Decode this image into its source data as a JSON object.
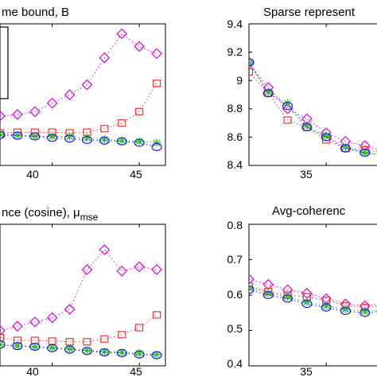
{
  "colors": {
    "magenta": "#e000e0",
    "red": "#ee3333",
    "green": "#22cc22",
    "blue": "#1a1aee",
    "black": "#000000"
  },
  "chart_data": [
    {
      "type": "line",
      "title": "me bound, B",
      "xticks": [
        "40",
        "45"
      ],
      "xlim": [
        37,
        46.5
      ],
      "ylim": [
        0,
        100
      ],
      "yticks": [],
      "legend": "boxed, partially visible at left edge",
      "x": [
        37,
        38,
        39,
        40,
        41,
        42,
        43,
        44,
        45,
        46
      ],
      "series": [
        {
          "marker": "diamond",
          "color": "magenta",
          "values": [
            35,
            36,
            38,
            44,
            50,
            57,
            76,
            93,
            84,
            79
          ]
        },
        {
          "marker": "square",
          "color": "red",
          "values": [
            23,
            23.5,
            23.5,
            23.5,
            23,
            23.5,
            26,
            30,
            38,
            58
          ]
        },
        {
          "marker": "star",
          "color": "green",
          "values": [
            22,
            21.5,
            20.5,
            20.5,
            20.5,
            19.5,
            18.5,
            17.5,
            17,
            16
          ]
        },
        {
          "marker": "circle",
          "color": "blue",
          "values": [
            21.5,
            21,
            20.5,
            19.5,
            19,
            18,
            17.5,
            17,
            16,
            13
          ]
        }
      ]
    },
    {
      "type": "line",
      "title": "Sparse represent",
      "xticks": [
        "35"
      ],
      "xlim": [
        31,
        38
      ],
      "ylim": [
        8.4,
        9.4
      ],
      "yticks": [
        "8.4",
        "8.6",
        "8.8",
        "9",
        "9.2",
        "9.4"
      ],
      "x": [
        31,
        32,
        33,
        34,
        35,
        36,
        37,
        38
      ],
      "series": [
        {
          "marker": "diamond",
          "color": "magenta",
          "values": [
            9.12,
            8.95,
            8.8,
            8.73,
            8.63,
            8.57,
            8.54,
            8.5
          ]
        },
        {
          "marker": "square",
          "color": "red",
          "values": [
            9.06,
            8.91,
            8.72,
            8.67,
            8.58,
            8.52,
            8.51,
            8.49
          ]
        },
        {
          "marker": "star",
          "color": "green",
          "values": [
            9.12,
            8.92,
            8.84,
            8.68,
            8.61,
            8.53,
            8.49,
            8.48
          ]
        },
        {
          "marker": "circle",
          "color": "blue",
          "values": [
            9.13,
            8.91,
            8.82,
            8.67,
            8.6,
            8.52,
            8.49,
            8.47
          ]
        }
      ]
    },
    {
      "type": "line",
      "title": "nce (cosine), μ",
      "title_sub": "mse",
      "xticks": [
        "40",
        "45"
      ],
      "xlim": [
        37,
        46.5
      ],
      "ylim": [
        0,
        100
      ],
      "yticks": [],
      "x": [
        37,
        38,
        39,
        40,
        41,
        42,
        43,
        44,
        45,
        46
      ],
      "series": [
        {
          "marker": "diamond",
          "color": "magenta",
          "values": [
            25,
            28,
            31,
            34,
            40,
            68,
            82,
            67,
            70,
            68
          ]
        },
        {
          "marker": "square",
          "color": "red",
          "values": [
            20,
            18,
            18,
            17.5,
            17,
            17,
            19,
            22,
            27,
            36
          ]
        },
        {
          "marker": "star",
          "color": "green",
          "values": [
            15,
            14,
            13.5,
            13,
            12,
            11,
            10,
            9.5,
            9,
            8
          ]
        },
        {
          "marker": "circle",
          "color": "blue",
          "values": [
            15,
            14,
            13.5,
            12.5,
            11.5,
            10.5,
            9.5,
            9,
            8,
            7.5
          ]
        }
      ]
    },
    {
      "type": "line",
      "title": "Avg-coherenc",
      "xticks": [
        "35"
      ],
      "xlim": [
        31,
        38
      ],
      "ylim": [
        0.4,
        0.8
      ],
      "yticks": [
        "0.4",
        "0.5",
        "0.6",
        "0.7",
        "0.8"
      ],
      "x": [
        31,
        32,
        33,
        34,
        35,
        36,
        37,
        38
      ],
      "series": [
        {
          "marker": "diamond",
          "color": "magenta",
          "values": [
            0.645,
            0.63,
            0.615,
            0.605,
            0.59,
            0.575,
            0.57,
            0.575
          ]
        },
        {
          "marker": "square",
          "color": "red",
          "values": [
            0.625,
            0.61,
            0.6,
            0.595,
            0.585,
            0.57,
            0.565,
            0.57
          ]
        },
        {
          "marker": "star",
          "color": "green",
          "values": [
            0.62,
            0.605,
            0.595,
            0.58,
            0.57,
            0.56,
            0.555,
            0.56
          ]
        },
        {
          "marker": "circle",
          "color": "blue",
          "values": [
            0.615,
            0.6,
            0.59,
            0.575,
            0.565,
            0.555,
            0.55,
            0.555
          ]
        }
      ]
    }
  ]
}
